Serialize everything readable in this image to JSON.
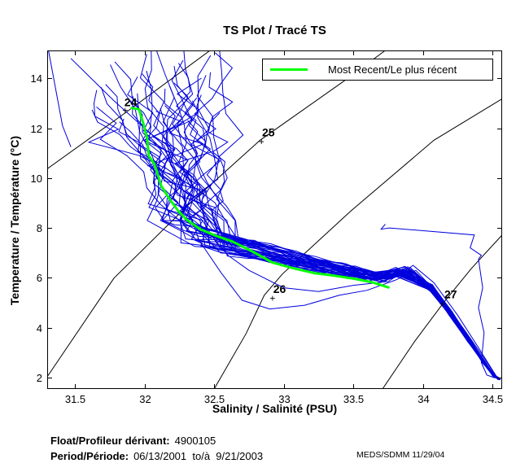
{
  "title": "TS Plot / Tracé TS",
  "legend": {
    "label": "Most Recent/Le plus récent",
    "line_color": "#00ff00"
  },
  "axes": {
    "x": {
      "label": "Salinity / Salinité (PSU)",
      "tick_labels": [
        "31.5",
        "32",
        "32.5",
        "33",
        "33.5",
        "34",
        "34.5"
      ],
      "tick_values": [
        31.5,
        32,
        32.5,
        33,
        33.5,
        34,
        34.5
      ]
    },
    "y": {
      "label": "Temperature / Température (°C)",
      "tick_labels": [
        "2",
        "4",
        "6",
        "8",
        "10",
        "12",
        "14"
      ],
      "tick_values": [
        2,
        4,
        6,
        8,
        10,
        12,
        14
      ]
    }
  },
  "footer": {
    "float_label": "Float/Profileur dérivant:",
    "float_value": "4900105",
    "period_label": "Period/Période:",
    "period_value": "06/13/2001  to/à  9/21/2003",
    "credit": "MEDS/SDMM  11/29/04"
  },
  "colors": {
    "profiles": "#0000dd",
    "recent": "#00ff00",
    "contours": "#000000"
  },
  "chart_data": {
    "type": "line",
    "title": "TS Plot / Tracé TS",
    "xlabel": "Salinity / Salinité (PSU)",
    "ylabel": "Temperature / Température (°C)",
    "xlim": [
      31.3,
      34.57
    ],
    "ylim": [
      1.54,
      15.12
    ],
    "grid": false,
    "legend_position": "top-right-inside",
    "density_contours": [
      {
        "label": "24",
        "points": [
          [
            31.3,
            10.37
          ],
          [
            31.88,
            12.69
          ],
          [
            32.47,
            15.12
          ]
        ],
        "label_at": [
          31.9,
          13.05
        ],
        "plus_at": [
          31.86,
          12.72
        ]
      },
      {
        "label": "25",
        "points": [
          [
            31.3,
            2.03
          ],
          [
            31.78,
            5.99
          ],
          [
            32.31,
            8.9
          ],
          [
            32.83,
            11.52
          ],
          [
            33.42,
            13.84
          ],
          [
            33.73,
            15.12
          ]
        ],
        "label_at": [
          32.89,
          11.84
        ],
        "plus_at": [
          32.84,
          11.46
        ]
      },
      {
        "label": "26",
        "points": [
          [
            32.5,
            1.54
          ],
          [
            32.73,
            3.77
          ],
          [
            32.86,
            5.3
          ],
          [
            32.99,
            6.15
          ],
          [
            33.18,
            7.13
          ],
          [
            33.48,
            8.67
          ],
          [
            34.08,
            11.52
          ],
          [
            34.57,
            13.18
          ]
        ],
        "label_at": [
          32.97,
          5.55
        ],
        "plus_at": [
          32.92,
          5.18
        ]
      },
      {
        "label": "27",
        "points": [
          [
            33.71,
            1.54
          ],
          [
            33.94,
            3.44
          ],
          [
            34.15,
            5.01
          ],
          [
            34.35,
            6.38
          ],
          [
            34.57,
            7.72
          ]
        ],
        "label_at": [
          34.2,
          5.35
        ],
        "plus_at": [
          34.14,
          4.95
        ]
      }
    ],
    "most_recent_profile": [
      [
        31.9,
        12.82
      ],
      [
        31.93,
        12.79
      ],
      [
        31.96,
        12.76
      ],
      [
        31.99,
        12.2
      ],
      [
        32.02,
        11.55
      ],
      [
        32.03,
        10.89
      ],
      [
        32.07,
        10.57
      ],
      [
        32.09,
        10.24
      ],
      [
        32.12,
        9.68
      ],
      [
        32.18,
        9.16
      ],
      [
        32.24,
        8.7
      ],
      [
        32.3,
        8.34
      ],
      [
        32.4,
        7.95
      ],
      [
        32.51,
        7.69
      ],
      [
        32.63,
        7.46
      ],
      [
        32.78,
        7.04
      ],
      [
        32.92,
        6.61
      ],
      [
        33.07,
        6.38
      ],
      [
        33.22,
        6.19
      ],
      [
        33.36,
        6.09
      ],
      [
        33.51,
        5.96
      ],
      [
        33.63,
        5.83
      ],
      [
        33.76,
        5.6
      ]
    ],
    "profile_bundle": {
      "count": 40,
      "seed": 20031121,
      "surface_S_range": [
        31.62,
        32.57
      ],
      "surface_T_range": [
        12.2,
        15.4
      ],
      "elbow_S_range": [
        32.15,
        32.6
      ],
      "elbow_T": 8.3,
      "band_spine": [
        [
          32.05,
          8.05
        ],
        [
          32.7,
          7.25
        ],
        [
          33.3,
          6.45
        ],
        [
          33.7,
          6.02
        ],
        [
          33.92,
          6.4
        ]
      ],
      "wedge_spine": [
        [
          34.06,
          5.6
        ],
        [
          34.2,
          4.55
        ],
        [
          34.33,
          3.5
        ],
        [
          34.44,
          2.6
        ],
        [
          34.51,
          2.08
        ],
        [
          34.55,
          1.93
        ]
      ]
    },
    "outlier_profiles": [
      [
        [
          31.31,
          15.1
        ],
        [
          31.41,
          12.1
        ],
        [
          31.47,
          11.25
        ]
      ],
      [
        [
          31.47,
          14.8
        ],
        [
          31.78,
          13.1
        ],
        [
          32.14,
          11.3
        ],
        [
          32.31,
          8.8
        ]
      ],
      [
        [
          33.73,
          8.15
        ],
        [
          33.7,
          7.95
        ],
        [
          33.76,
          8.0
        ],
        [
          34.37,
          7.72
        ],
        [
          34.34,
          7.2
        ],
        [
          34.42,
          6.9
        ],
        [
          34.4,
          6.75
        ],
        [
          34.43,
          5.6
        ],
        [
          34.4,
          4.8
        ],
        [
          34.44,
          3.8
        ],
        [
          34.42,
          2.6
        ],
        [
          34.46,
          2.1
        ],
        [
          34.52,
          1.98
        ]
      ],
      [
        [
          32.38,
          7.6
        ],
        [
          32.55,
          6.2
        ],
        [
          32.7,
          5.1
        ],
        [
          32.9,
          4.75
        ],
        [
          33.15,
          4.9
        ],
        [
          33.4,
          5.3
        ],
        [
          33.6,
          5.5
        ],
        [
          33.8,
          5.9
        ],
        [
          33.95,
          6.3
        ],
        [
          34.1,
          5.4
        ],
        [
          34.3,
          3.9
        ],
        [
          34.45,
          2.7
        ],
        [
          34.53,
          2.0
        ]
      ],
      [
        [
          32.45,
          7.9
        ],
        [
          32.6,
          6.9
        ],
        [
          32.75,
          6.3
        ],
        [
          33.0,
          5.6
        ],
        [
          33.25,
          5.45
        ],
        [
          33.5,
          5.7
        ],
        [
          33.75,
          5.85
        ],
        [
          33.93,
          6.5
        ],
        [
          34.08,
          5.8
        ],
        [
          34.25,
          4.5
        ],
        [
          34.4,
          3.2
        ],
        [
          34.5,
          2.3
        ],
        [
          34.54,
          1.95
        ]
      ]
    ]
  }
}
